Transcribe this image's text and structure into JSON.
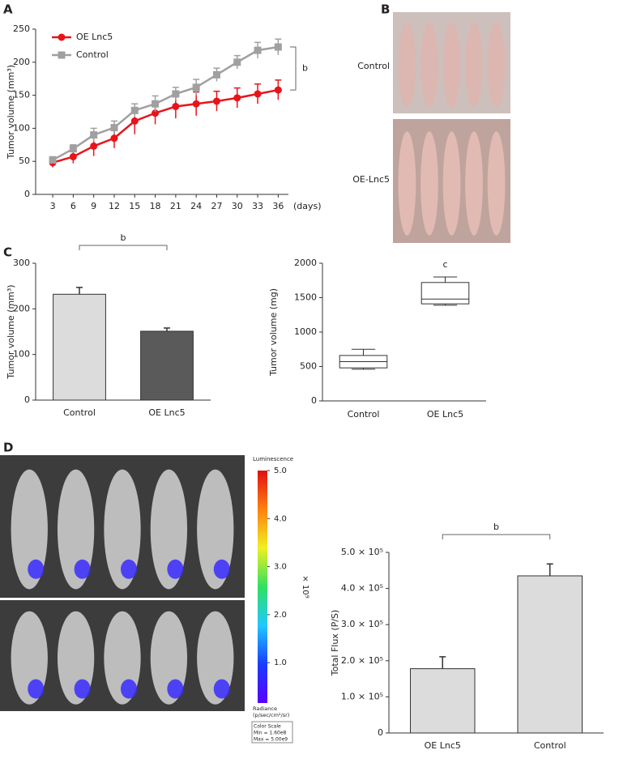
{
  "panel_labels": [
    "A",
    "B",
    "C",
    "D"
  ],
  "photo_labels": [
    "Control",
    "OE-Lnc5"
  ],
  "chart_data": [
    {
      "type": "line",
      "ylabel": "Tumor volume (mm³)",
      "xlabel": "(days)",
      "x": [
        3,
        6,
        9,
        12,
        15,
        18,
        21,
        24,
        27,
        30,
        33,
        36
      ],
      "xlim": [
        0.5,
        37.5
      ],
      "xticks": [
        3,
        6,
        9,
        12,
        15,
        18,
        21,
        24,
        27,
        30,
        33,
        36
      ],
      "ylim": [
        0,
        250
      ],
      "yticks": [
        0,
        50,
        100,
        150,
        200,
        250
      ],
      "legend": "upper left",
      "annotation": "b",
      "series": [
        {
          "name": "OE Lnc5",
          "color": "#e8141b",
          "marker": "circle",
          "values": [
            48,
            57,
            73,
            85,
            111,
            123,
            133,
            137,
            141,
            146,
            152,
            158
          ],
          "errors": [
            7,
            10,
            15,
            15,
            20,
            17,
            18,
            18,
            15,
            15,
            15,
            15
          ]
        },
        {
          "name": "Control",
          "color": "#a0a0a0",
          "marker": "square",
          "values": [
            52,
            69,
            90,
            101,
            127,
            137,
            152,
            162,
            181,
            200,
            218,
            223
          ],
          "errors": [
            5,
            6,
            10,
            10,
            10,
            12,
            10,
            12,
            10,
            10,
            12,
            12
          ]
        }
      ]
    },
    {
      "type": "bar",
      "ylabel": "Tumor volume (mm³)",
      "categories": [
        "Control",
        "OE Lnc5"
      ],
      "values": [
        232,
        151
      ],
      "errors": [
        15,
        7
      ],
      "colors": [
        "#dcdcdc",
        "#5a5a5a"
      ],
      "ylim": [
        0,
        300
      ],
      "yticks": [
        0,
        100,
        200,
        300
      ],
      "annotation": "b"
    },
    {
      "type": "box",
      "ylabel": "Tumor volume (mg)",
      "categories": [
        "Control",
        "OE Lnc5"
      ],
      "boxes": [
        {
          "min": 460,
          "q1": 480,
          "median": 570,
          "q3": 660,
          "max": 750
        },
        {
          "min": 1390,
          "q1": 1410,
          "median": 1480,
          "q3": 1720,
          "max": 1800
        }
      ],
      "ylim": [
        0,
        2000
      ],
      "yticks": [
        0,
        500,
        1000,
        1500,
        2000
      ],
      "annotation": "c"
    },
    {
      "type": "colorbar",
      "title": "Luminescence",
      "unit": "× 10⁹",
      "colors": [
        "#5a00ff",
        "#1a3cff",
        "#20c8ff",
        "#30e060",
        "#f0f020",
        "#ff8010",
        "#e01010"
      ],
      "ylim": [
        0.16,
        5.0
      ],
      "yticks": [
        {
          "value": 1,
          "label": "1.0"
        },
        {
          "value": 2,
          "label": "2.0"
        },
        {
          "value": 3,
          "label": "3.0"
        },
        {
          "value": 4,
          "label": "4.0"
        },
        {
          "value": 5,
          "label": "5.0"
        }
      ],
      "radiance": [
        "Radiance",
        "(p/sec/cm²/sr)"
      ],
      "scale_box": [
        "Color Scale",
        "Min = 1.60e8",
        "Max = 5.00e9"
      ]
    },
    {
      "type": "bar",
      "ylabel": "Total Flux (P/S)",
      "categories": [
        "OE Lnc5",
        "Control"
      ],
      "values": [
        178000,
        435000
      ],
      "errors": [
        33000,
        33000
      ],
      "colors": [
        "#dcdcdc",
        "#dcdcdc"
      ],
      "ylim": [
        0,
        500000
      ],
      "yticks": [
        0,
        {
          "value": 100000,
          "label": "1.0 × 10⁵"
        },
        {
          "value": 200000,
          "label": "2.0 × 10⁵"
        },
        {
          "value": 300000,
          "label": "3.0 × 10⁵"
        },
        {
          "value": 400000,
          "label": "4.0 × 10⁵"
        },
        {
          "value": 500000,
          "label": "5.0 × 10⁵"
        }
      ],
      "annotation": "b"
    }
  ]
}
